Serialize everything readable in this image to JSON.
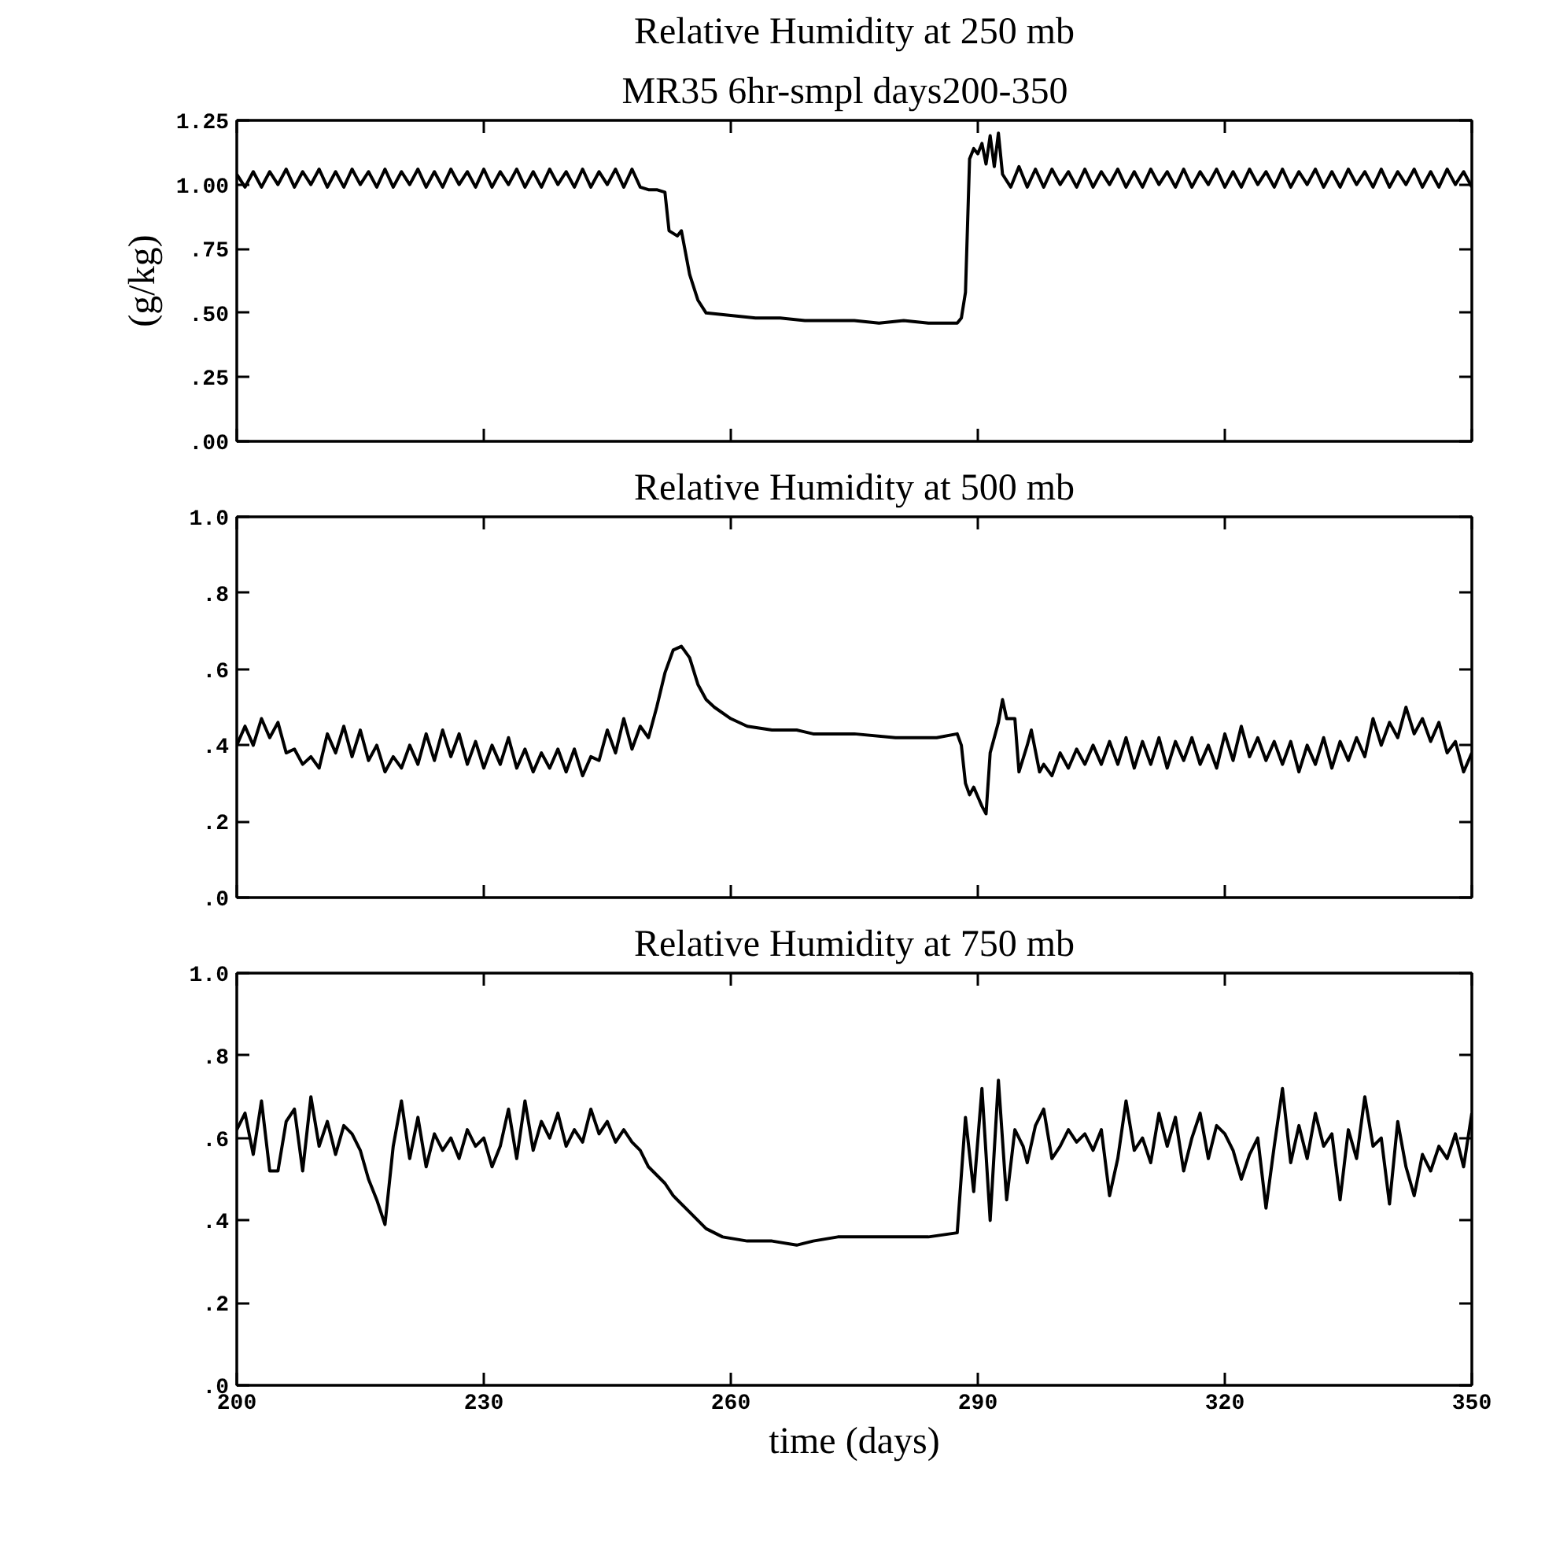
{
  "chart_data": [
    {
      "type": "line",
      "title": "Relative Humidity at 250 mb",
      "subtitle": "MR35  6hr-smpl  days200-350",
      "ylabel": "(g/kg)",
      "xlim": [
        200,
        350
      ],
      "ylim": [
        0,
        1.25
      ],
      "xticks": [
        200,
        230,
        260,
        290,
        320,
        350
      ],
      "yticks": [
        {
          "value": 0,
          "label": ".00"
        },
        {
          "value": 0.25,
          "label": ".25"
        },
        {
          "value": 0.5,
          "label": ".50"
        },
        {
          "value": 0.75,
          "label": ".75"
        },
        {
          "value": 1,
          "label": "1.00"
        },
        {
          "value": 1.25,
          "label": "1.25"
        }
      ],
      "tick_labels": "y",
      "grid": false,
      "line_style": "solid",
      "marker": "none",
      "series": [
        {
          "color": "#000000",
          "x": [
            200,
            201,
            202,
            203,
            204,
            205,
            206,
            207,
            208,
            209,
            210,
            211,
            212,
            213,
            214,
            215,
            216,
            217,
            218,
            219,
            220,
            221,
            222,
            223,
            224,
            225,
            226,
            227,
            228,
            229,
            230,
            231,
            232,
            233,
            234,
            235,
            236,
            237,
            238,
            239,
            240,
            241,
            242,
            243,
            244,
            245,
            246,
            247,
            248,
            249,
            250,
            251,
            252,
            252.5,
            253.5,
            254,
            255,
            256,
            257,
            260,
            263,
            266,
            269,
            272,
            275,
            278,
            281,
            284,
            287.5,
            288,
            288.5,
            289,
            289.5,
            290,
            290.5,
            291,
            291.5,
            292,
            292.5,
            293,
            294,
            295,
            296,
            297,
            298,
            299,
            300,
            301,
            302,
            303,
            304,
            305,
            306,
            307,
            308,
            309,
            310,
            311,
            312,
            313,
            314,
            315,
            316,
            317,
            318,
            319,
            320,
            321,
            322,
            323,
            324,
            325,
            326,
            327,
            328,
            329,
            330,
            331,
            332,
            333,
            334,
            335,
            336,
            337,
            338,
            339,
            340,
            341,
            342,
            343,
            344,
            345,
            346,
            347,
            348,
            349,
            350
          ],
          "values": [
            1.04,
            0.99,
            1.05,
            0.99,
            1.05,
            1.0,
            1.06,
            0.99,
            1.05,
            1.0,
            1.06,
            0.99,
            1.05,
            0.99,
            1.06,
            1.0,
            1.05,
            0.99,
            1.06,
            0.99,
            1.05,
            1.0,
            1.06,
            0.99,
            1.05,
            0.99,
            1.06,
            1.0,
            1.05,
            0.99,
            1.06,
            0.99,
            1.05,
            1.0,
            1.06,
            0.99,
            1.05,
            0.99,
            1.06,
            1.0,
            1.05,
            0.99,
            1.06,
            0.99,
            1.05,
            1.0,
            1.06,
            0.99,
            1.06,
            0.99,
            0.98,
            0.98,
            0.97,
            0.82,
            0.8,
            0.82,
            0.65,
            0.55,
            0.5,
            0.49,
            0.48,
            0.48,
            0.47,
            0.47,
            0.47,
            0.46,
            0.47,
            0.46,
            0.46,
            0.48,
            0.58,
            1.1,
            1.14,
            1.12,
            1.16,
            1.08,
            1.19,
            1.07,
            1.2,
            1.04,
            0.99,
            1.07,
            0.99,
            1.06,
            0.99,
            1.06,
            1.0,
            1.05,
            0.99,
            1.06,
            0.99,
            1.05,
            1.0,
            1.06,
            0.99,
            1.05,
            0.99,
            1.06,
            1.0,
            1.05,
            0.99,
            1.06,
            0.99,
            1.05,
            1.0,
            1.06,
            0.99,
            1.05,
            0.99,
            1.06,
            1.0,
            1.05,
            0.99,
            1.06,
            0.99,
            1.05,
            1.0,
            1.06,
            0.99,
            1.05,
            0.99,
            1.06,
            1.0,
            1.05,
            0.99,
            1.06,
            0.99,
            1.05,
            1.0,
            1.06,
            0.99,
            1.05,
            0.99,
            1.06,
            1.0,
            1.05,
            0.99
          ]
        }
      ]
    },
    {
      "type": "line",
      "title": "Relative Humidity at 500 mb",
      "xlim": [
        200,
        350
      ],
      "ylim": [
        0,
        1
      ],
      "xticks": [
        200,
        230,
        260,
        290,
        320,
        350
      ],
      "yticks": [
        {
          "value": 0,
          "label": ".0"
        },
        {
          "value": 0.2,
          "label": ".2"
        },
        {
          "value": 0.4,
          "label": ".4"
        },
        {
          "value": 0.6,
          "label": ".6"
        },
        {
          "value": 0.8,
          "label": ".8"
        },
        {
          "value": 1,
          "label": "1.0"
        }
      ],
      "tick_labels": "y",
      "grid": false,
      "line_style": "solid",
      "marker": "none",
      "series": [
        {
          "color": "#000000",
          "x": [
            200,
            201,
            202,
            203,
            204,
            205,
            206,
            207,
            208,
            209,
            210,
            211,
            212,
            213,
            214,
            215,
            216,
            217,
            218,
            219,
            220,
            221,
            222,
            223,
            224,
            225,
            226,
            227,
            228,
            229,
            230,
            231,
            232,
            233,
            234,
            235,
            236,
            237,
            238,
            239,
            240,
            241,
            242,
            243,
            244,
            245,
            246,
            247,
            248,
            249,
            250,
            251,
            252,
            253,
            254,
            255,
            256,
            257,
            258,
            260,
            262,
            265,
            268,
            270,
            275,
            280,
            285,
            287.5,
            288,
            288.5,
            289,
            289.5,
            290.5,
            291,
            291.5,
            292.5,
            293,
            293.5,
            294.5,
            295,
            296,
            296.5,
            297.5,
            298,
            299,
            300,
            301,
            302,
            303,
            304,
            305,
            306,
            307,
            308,
            309,
            310,
            311,
            312,
            313,
            314,
            315,
            316,
            317,
            318,
            319,
            320,
            321,
            322,
            323,
            324,
            325,
            326,
            327,
            328,
            329,
            330,
            331,
            332,
            333,
            334,
            335,
            336,
            337,
            338,
            339,
            340,
            341,
            342,
            343,
            344,
            345,
            346,
            347,
            348,
            349,
            350
          ],
          "values": [
            0.4,
            0.45,
            0.4,
            0.47,
            0.42,
            0.46,
            0.38,
            0.39,
            0.35,
            0.37,
            0.34,
            0.43,
            0.38,
            0.45,
            0.37,
            0.44,
            0.36,
            0.4,
            0.33,
            0.37,
            0.34,
            0.4,
            0.35,
            0.43,
            0.36,
            0.44,
            0.37,
            0.43,
            0.35,
            0.41,
            0.34,
            0.4,
            0.35,
            0.42,
            0.34,
            0.39,
            0.33,
            0.38,
            0.34,
            0.39,
            0.33,
            0.39,
            0.32,
            0.37,
            0.36,
            0.44,
            0.38,
            0.47,
            0.39,
            0.45,
            0.42,
            0.5,
            0.59,
            0.65,
            0.66,
            0.63,
            0.56,
            0.52,
            0.5,
            0.47,
            0.45,
            0.44,
            0.44,
            0.43,
            0.43,
            0.42,
            0.42,
            0.43,
            0.4,
            0.3,
            0.27,
            0.29,
            0.24,
            0.22,
            0.38,
            0.46,
            0.52,
            0.47,
            0.47,
            0.33,
            0.4,
            0.44,
            0.33,
            0.35,
            0.32,
            0.38,
            0.34,
            0.39,
            0.35,
            0.4,
            0.35,
            0.41,
            0.35,
            0.42,
            0.34,
            0.41,
            0.35,
            0.42,
            0.34,
            0.41,
            0.36,
            0.42,
            0.35,
            0.4,
            0.34,
            0.43,
            0.36,
            0.45,
            0.37,
            0.42,
            0.36,
            0.41,
            0.35,
            0.41,
            0.33,
            0.4,
            0.35,
            0.42,
            0.34,
            0.41,
            0.36,
            0.42,
            0.37,
            0.47,
            0.4,
            0.46,
            0.42,
            0.5,
            0.43,
            0.47,
            0.41,
            0.46,
            0.38,
            0.41,
            0.33,
            0.38
          ]
        }
      ]
    },
    {
      "type": "line",
      "title": "Relative Humidity at 750 mb",
      "xlabel": "time (days)",
      "xlim": [
        200,
        350
      ],
      "ylim": [
        0,
        1
      ],
      "xticks": [
        {
          "value": 200,
          "label": "200"
        },
        {
          "value": 230,
          "label": "230"
        },
        {
          "value": 260,
          "label": "260"
        },
        {
          "value": 290,
          "label": "290"
        },
        {
          "value": 320,
          "label": "320"
        },
        {
          "value": 350,
          "label": "350"
        }
      ],
      "yticks": [
        {
          "value": 0,
          "label": ".0"
        },
        {
          "value": 0.2,
          "label": ".2"
        },
        {
          "value": 0.4,
          "label": ".4"
        },
        {
          "value": 0.6,
          "label": ".6"
        },
        {
          "value": 0.8,
          "label": ".8"
        },
        {
          "value": 1,
          "label": "1.0"
        }
      ],
      "grid": false,
      "line_style": "solid",
      "marker": "none",
      "series": [
        {
          "color": "#000000",
          "x": [
            200,
            201,
            202,
            203,
            204,
            205,
            206,
            207,
            208,
            209,
            210,
            211,
            212,
            213,
            214,
            215,
            216,
            217,
            218,
            219,
            220,
            221,
            222,
            223,
            224,
            225,
            226,
            227,
            228,
            229,
            230,
            231,
            232,
            233,
            234,
            235,
            236,
            237,
            238,
            239,
            240,
            241,
            242,
            243,
            244,
            245,
            246,
            247,
            248,
            249,
            250,
            251,
            252,
            253,
            255,
            257,
            259,
            262,
            265,
            268,
            270,
            273,
            276,
            280,
            284,
            287.5,
            288.5,
            289.5,
            290.5,
            291.5,
            292.5,
            293.5,
            294.5,
            295.5,
            296,
            297,
            298,
            299,
            300,
            301,
            302,
            303,
            304,
            305,
            306,
            307,
            308,
            309,
            310,
            311,
            312,
            313,
            314,
            315,
            316,
            317,
            318,
            319,
            320,
            321,
            322,
            323,
            324,
            325,
            326,
            327,
            328,
            329,
            330,
            331,
            332,
            333,
            334,
            335,
            336,
            337,
            338,
            339,
            340,
            341,
            342,
            343,
            344,
            345,
            346,
            347,
            348,
            349,
            350
          ],
          "values": [
            0.62,
            0.66,
            0.56,
            0.69,
            0.52,
            0.52,
            0.64,
            0.67,
            0.52,
            0.7,
            0.58,
            0.64,
            0.56,
            0.63,
            0.61,
            0.57,
            0.5,
            0.45,
            0.39,
            0.58,
            0.69,
            0.55,
            0.65,
            0.53,
            0.61,
            0.57,
            0.6,
            0.55,
            0.62,
            0.58,
            0.6,
            0.53,
            0.58,
            0.67,
            0.55,
            0.69,
            0.57,
            0.64,
            0.6,
            0.66,
            0.58,
            0.62,
            0.59,
            0.67,
            0.61,
            0.64,
            0.59,
            0.62,
            0.59,
            0.57,
            0.53,
            0.51,
            0.49,
            0.46,
            0.42,
            0.38,
            0.36,
            0.35,
            0.35,
            0.34,
            0.35,
            0.36,
            0.36,
            0.36,
            0.36,
            0.37,
            0.65,
            0.47,
            0.72,
            0.4,
            0.74,
            0.45,
            0.62,
            0.58,
            0.54,
            0.63,
            0.67,
            0.55,
            0.58,
            0.62,
            0.59,
            0.61,
            0.57,
            0.62,
            0.46,
            0.55,
            0.69,
            0.57,
            0.6,
            0.54,
            0.66,
            0.58,
            0.65,
            0.52,
            0.6,
            0.66,
            0.55,
            0.63,
            0.61,
            0.57,
            0.5,
            0.56,
            0.6,
            0.43,
            0.58,
            0.72,
            0.54,
            0.63,
            0.55,
            0.66,
            0.58,
            0.61,
            0.45,
            0.62,
            0.55,
            0.7,
            0.58,
            0.6,
            0.44,
            0.64,
            0.53,
            0.46,
            0.56,
            0.52,
            0.58,
            0.55,
            0.61,
            0.53,
            0.66
          ]
        }
      ]
    }
  ]
}
